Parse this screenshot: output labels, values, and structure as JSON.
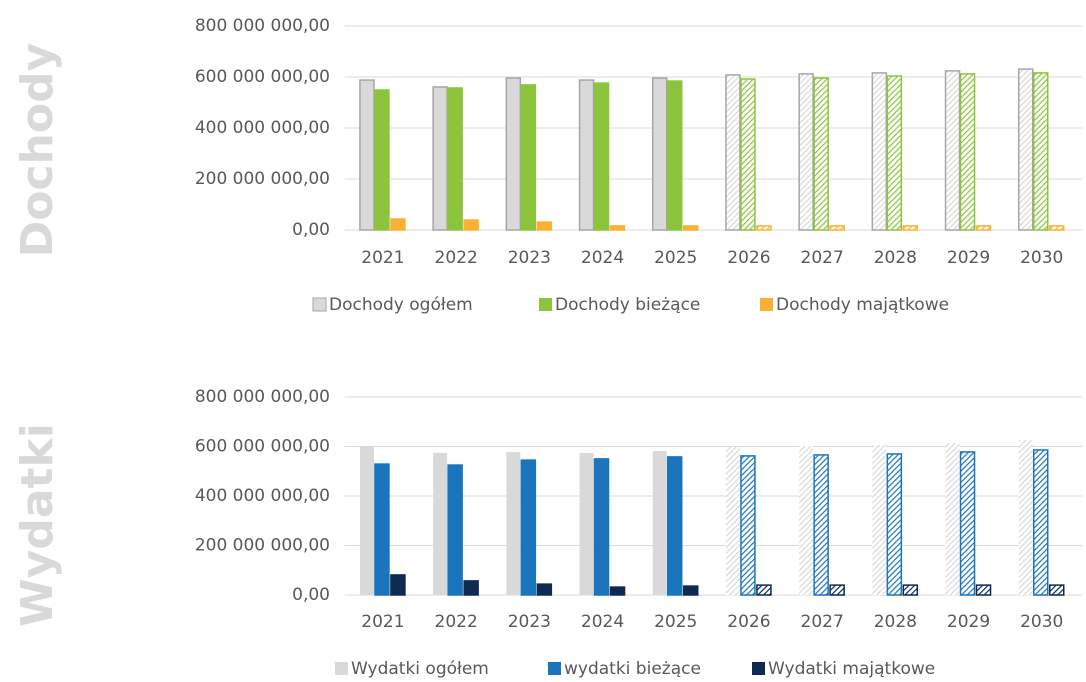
{
  "chart_data": [
    {
      "type": "bar",
      "panel_label": "Dochody",
      "categories": [
        "2021",
        "2022",
        "2023",
        "2024",
        "2025",
        "2026",
        "2027",
        "2028",
        "2029",
        "2030"
      ],
      "hatched": [
        false,
        false,
        false,
        false,
        false,
        true,
        true,
        true,
        true,
        true
      ],
      "series": [
        {
          "name": "Dochody ogółem",
          "color": "#d9d9d9",
          "stroke": "#a6a6a6",
          "values": [
            588,
            561,
            596,
            588,
            596,
            608,
            612,
            616,
            624,
            631
          ]
        },
        {
          "name": "Dochody bieżące",
          "color": "#8cc43c",
          "stroke": "#8cc43c",
          "values": [
            549,
            557,
            569,
            576,
            584,
            592,
            596,
            604,
            612,
            616
          ]
        },
        {
          "name": "Dochody majątkowe",
          "color": "#fbb034",
          "stroke": "#fbb034",
          "values": [
            43,
            39,
            31,
            16,
            16,
            16,
            16,
            16,
            16,
            16
          ]
        }
      ],
      "ylim": [
        0,
        800
      ],
      "yticks": [
        {
          "value": 0,
          "label": "0,00"
        },
        {
          "value": 200,
          "label": "200 000 000,00"
        },
        {
          "value": 400,
          "label": "400 000 000,00"
        },
        {
          "value": 600,
          "label": "600 000 000,00"
        },
        {
          "value": 800,
          "label": "800 000 000,00"
        }
      ],
      "grid": true
    },
    {
      "type": "bar",
      "panel_label": "Wydatki",
      "categories": [
        "2021",
        "2022",
        "2023",
        "2024",
        "2025",
        "2026",
        "2027",
        "2028",
        "2029",
        "2030"
      ],
      "hatched": [
        false,
        false,
        false,
        false,
        false,
        true,
        true,
        true,
        true,
        true
      ],
      "series": [
        {
          "name": "Wydatki ogółem",
          "color": "#d9d9d9",
          "stroke": "none",
          "values": [
            602,
            574,
            578,
            574,
            582,
            598,
            602,
            606,
            614,
            626
          ]
        },
        {
          "name": "wydatki bieżące",
          "color": "#1b75bc",
          "stroke": "#1b75bc",
          "values": [
            529,
            525,
            545,
            550,
            558,
            562,
            566,
            570,
            578,
            586
          ]
        },
        {
          "name": "Wydatki majątkowe",
          "color": "#0f2a52",
          "stroke": "#0f2a52",
          "values": [
            81,
            57,
            44,
            32,
            36,
            40,
            40,
            40,
            40,
            40
          ]
        }
      ],
      "ylim": [
        0,
        800
      ],
      "yticks": [
        {
          "value": 0,
          "label": "0,00"
        },
        {
          "value": 200,
          "label": "200 000 000,00"
        },
        {
          "value": 400,
          "label": "400 000 000,00"
        },
        {
          "value": 600,
          "label": "600 000 000,00"
        },
        {
          "value": 800,
          "label": "800 000 000,00"
        }
      ],
      "grid": true
    }
  ]
}
